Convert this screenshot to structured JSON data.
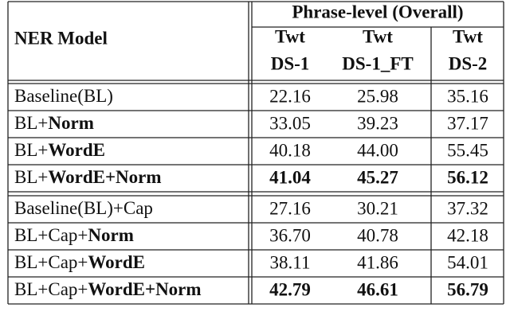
{
  "header": {
    "model": "NER Model",
    "group": "Phrase-level (Overall)",
    "columns": [
      [
        "Twt",
        "DS-1"
      ],
      [
        "Twt",
        "DS-1_FT"
      ],
      [
        "Twt",
        "DS-2"
      ]
    ]
  },
  "sections": [
    {
      "rows": [
        {
          "label": [
            {
              "text": "Baseline(BL)",
              "bold": false
            }
          ],
          "values": [
            "22.16",
            "25.98",
            "35.16"
          ],
          "bold": false
        },
        {
          "label": [
            {
              "text": "BL+",
              "bold": false
            },
            {
              "text": "Norm",
              "bold": true
            }
          ],
          "values": [
            "33.05",
            "39.23",
            "37.17"
          ],
          "bold": false
        },
        {
          "label": [
            {
              "text": "BL+",
              "bold": false
            },
            {
              "text": "WordE",
              "bold": true
            }
          ],
          "values": [
            "40.18",
            "44.00",
            "55.45"
          ],
          "bold": false
        },
        {
          "label": [
            {
              "text": "BL+",
              "bold": false
            },
            {
              "text": "WordE+Norm",
              "bold": true
            }
          ],
          "values": [
            "41.04",
            "45.27",
            "56.12"
          ],
          "bold": true
        }
      ]
    },
    {
      "rows": [
        {
          "label": [
            {
              "text": "Baseline(BL)+Cap",
              "bold": false
            }
          ],
          "values": [
            "27.16",
            "30.21",
            "37.32"
          ],
          "bold": false
        },
        {
          "label": [
            {
              "text": "BL+Cap+",
              "bold": false
            },
            {
              "text": "Norm",
              "bold": true
            }
          ],
          "values": [
            "36.70",
            "40.78",
            "42.18"
          ],
          "bold": false
        },
        {
          "label": [
            {
              "text": "BL+Cap+",
              "bold": false
            },
            {
              "text": "WordE",
              "bold": true
            }
          ],
          "values": [
            "38.11",
            "41.86",
            "54.01"
          ],
          "bold": false
        },
        {
          "label": [
            {
              "text": "BL+Cap+",
              "bold": false
            },
            {
              "text": "WordE+Norm",
              "bold": true
            }
          ],
          "values": [
            "42.79",
            "46.61",
            "56.79"
          ],
          "bold": true
        }
      ]
    }
  ]
}
